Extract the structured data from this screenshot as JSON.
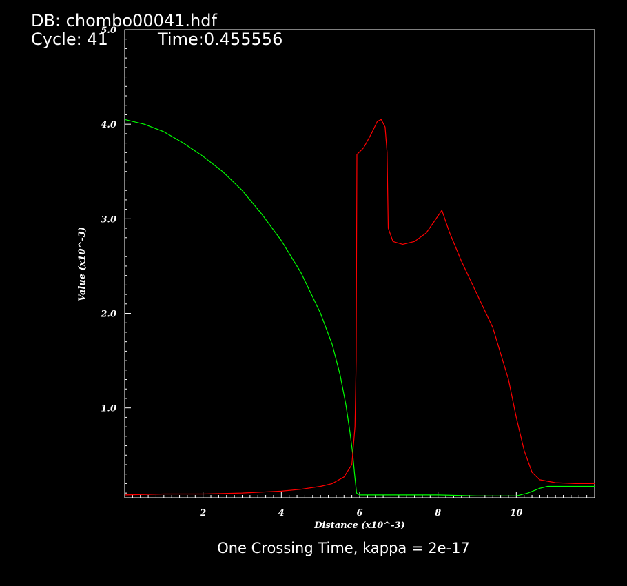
{
  "header": {
    "db": "DB: chombo00041.hdf",
    "cycle": "Cycle: 41",
    "time": "Time:0.455556"
  },
  "footer": {
    "caption": "One Crossing Time, kappa = 2e-17"
  },
  "chart_data": {
    "type": "line",
    "xlabel": "Distance (x10^-3)",
    "ylabel": "Value (x10^-3)",
    "xlim": [
      0,
      12
    ],
    "ylim": [
      0.05,
      5.0
    ],
    "x_ticks": [
      2,
      4,
      6,
      8,
      10
    ],
    "y_ticks": [
      1.0,
      2.0,
      3.0,
      4.0,
      5.0
    ],
    "x_tick_labels": [
      "2",
      "4",
      "6",
      "8",
      "10"
    ],
    "y_tick_labels": [
      "1.0",
      "2.0",
      "3.0",
      "4.0",
      "5.0"
    ],
    "grid": false,
    "series": [
      {
        "color": "#00ff00",
        "points": [
          [
            0,
            4.05
          ],
          [
            0.5,
            4.0
          ],
          [
            1,
            3.92
          ],
          [
            1.5,
            3.8
          ],
          [
            2,
            3.66
          ],
          [
            2.5,
            3.5
          ],
          [
            3,
            3.3
          ],
          [
            3.5,
            3.05
          ],
          [
            4,
            2.77
          ],
          [
            4.5,
            2.43
          ],
          [
            5,
            2.0
          ],
          [
            5.3,
            1.67
          ],
          [
            5.5,
            1.35
          ],
          [
            5.65,
            1.03
          ],
          [
            5.75,
            0.75
          ],
          [
            5.82,
            0.52
          ],
          [
            5.87,
            0.3
          ],
          [
            5.92,
            0.1
          ],
          [
            6.0,
            0.08
          ],
          [
            7,
            0.08
          ],
          [
            8,
            0.08
          ],
          [
            9,
            0.07
          ],
          [
            10,
            0.07
          ],
          [
            10.3,
            0.1
          ],
          [
            10.6,
            0.15
          ],
          [
            10.8,
            0.17
          ],
          [
            11.5,
            0.17
          ],
          [
            12,
            0.17
          ]
        ]
      },
      {
        "color": "#ff0000",
        "points": [
          [
            0,
            0.08
          ],
          [
            1,
            0.09
          ],
          [
            2,
            0.09
          ],
          [
            3,
            0.1
          ],
          [
            4,
            0.12
          ],
          [
            4.5,
            0.14
          ],
          [
            5,
            0.17
          ],
          [
            5.3,
            0.2
          ],
          [
            5.6,
            0.27
          ],
          [
            5.8,
            0.4
          ],
          [
            5.88,
            0.8
          ],
          [
            5.91,
            1.5
          ],
          [
            5.93,
            3.68
          ],
          [
            6.1,
            3.75
          ],
          [
            6.3,
            3.9
          ],
          [
            6.45,
            4.03
          ],
          [
            6.55,
            4.05
          ],
          [
            6.65,
            3.97
          ],
          [
            6.7,
            3.7
          ],
          [
            6.73,
            2.9
          ],
          [
            6.85,
            2.76
          ],
          [
            7.1,
            2.73
          ],
          [
            7.4,
            2.76
          ],
          [
            7.7,
            2.85
          ],
          [
            7.9,
            2.97
          ],
          [
            8.1,
            3.09
          ],
          [
            8.3,
            2.85
          ],
          [
            8.6,
            2.55
          ],
          [
            9,
            2.2
          ],
          [
            9.4,
            1.85
          ],
          [
            9.8,
            1.3
          ],
          [
            10,
            0.9
          ],
          [
            10.2,
            0.55
          ],
          [
            10.4,
            0.32
          ],
          [
            10.6,
            0.24
          ],
          [
            11,
            0.21
          ],
          [
            11.5,
            0.2
          ],
          [
            12,
            0.2
          ]
        ]
      }
    ]
  }
}
